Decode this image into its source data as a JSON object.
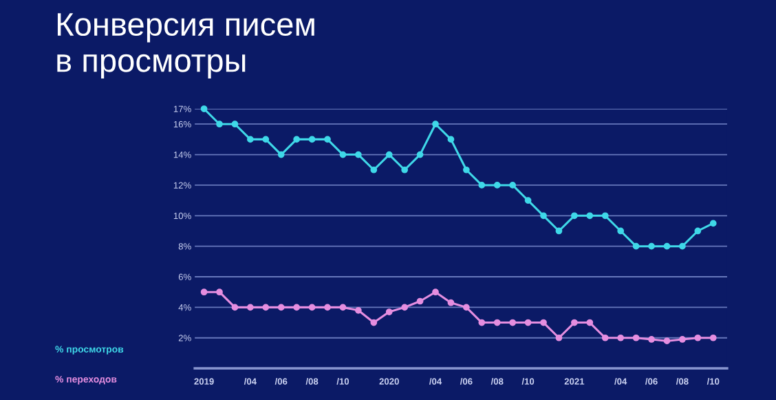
{
  "chart_data": {
    "type": "line",
    "title": "Конверсия писем\nв просмотры",
    "categories": [
      "2019",
      null,
      null,
      "/04",
      null,
      "/06",
      null,
      "/08",
      null,
      "/10",
      null,
      null,
      "2020",
      null,
      null,
      "/04",
      null,
      "/06",
      null,
      "/08",
      null,
      "/10",
      null,
      null,
      "2021",
      null,
      null,
      "/04",
      null,
      "/06",
      null,
      "/08",
      null,
      "/10"
    ],
    "series": [
      {
        "name": "% просмотров",
        "color": "#3fd8e8",
        "values": [
          17,
          16,
          16,
          15,
          15,
          14,
          15,
          15,
          15,
          14,
          14,
          13,
          14,
          13,
          14,
          16,
          15,
          13,
          12,
          12,
          12,
          11,
          10,
          9,
          10,
          10,
          10,
          9,
          8,
          8,
          8,
          8,
          9,
          9.5
        ]
      },
      {
        "name": "% переходов",
        "color": "#e58ee0",
        "values": [
          5,
          5,
          4,
          4,
          4,
          4,
          4,
          4,
          4,
          4,
          3.8,
          3,
          3.7,
          4,
          4.4,
          5,
          4.3,
          4,
          3,
          3,
          3,
          3,
          3,
          2,
          3,
          3,
          2,
          2,
          2,
          1.9,
          1.8,
          1.9,
          2,
          2
        ]
      }
    ],
    "ylim": [
      0,
      17
    ],
    "yticks": [
      {
        "value": 2,
        "label": "2%"
      },
      {
        "value": 4,
        "label": "4%"
      },
      {
        "value": 6,
        "label": "6%"
      },
      {
        "value": 8,
        "label": "8%"
      },
      {
        "value": 10,
        "label": "10%"
      },
      {
        "value": 12,
        "label": "12%"
      },
      {
        "value": 14,
        "label": "14%"
      },
      {
        "value": 16,
        "label": "16%"
      },
      {
        "value": 17,
        "label": "17%"
      }
    ],
    "grid": "y",
    "legend": "left",
    "marker": "circle",
    "line_style": "solid"
  }
}
